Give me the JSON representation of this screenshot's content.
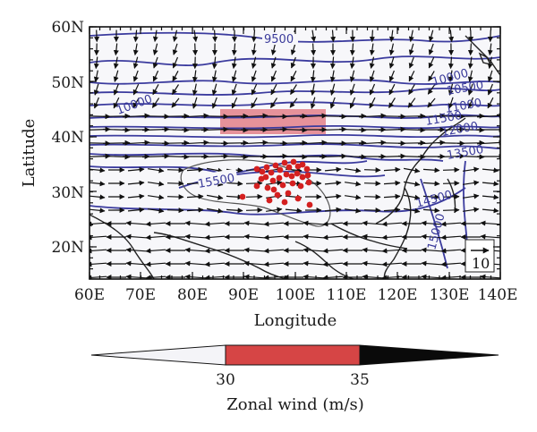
{
  "map": {
    "axes": {
      "x_label": "Longitude",
      "y_label": "Latitude",
      "x_ticks": [
        "60E",
        "70E",
        "80E",
        "90E",
        "100E",
        "110E",
        "120E",
        "130E",
        "140E"
      ],
      "y_ticks": [
        "20N",
        "30N",
        "40N",
        "50N",
        "60N"
      ],
      "lon_range": [
        60,
        140
      ],
      "lat_range": [
        15,
        60
      ]
    },
    "contour_labels": [
      "9500",
      "10000",
      "10500",
      "11000",
      "11500",
      "12000",
      "13500",
      "14500",
      "15000",
      "15500",
      "10000"
    ],
    "reference_vector": {
      "label": "10"
    },
    "colorbar": {
      "title": "Zonal wind (m/s)",
      "tick_labels": [
        "30",
        "35"
      ],
      "colors": {
        "low": "#f4f4f8",
        "mid": "#d64545",
        "high": "#0a0a0a"
      }
    },
    "colors": {
      "contour": "#3b3b9e",
      "arrow": "#111111",
      "coast": "#222222",
      "jet_shade": "#e0707a",
      "stations": "#d42020",
      "terrain": "#555555"
    }
  }
}
